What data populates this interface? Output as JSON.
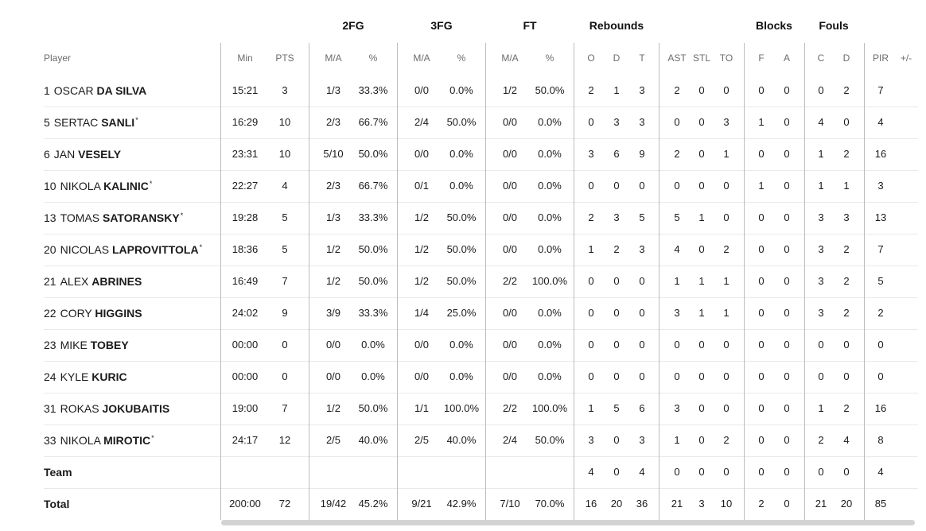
{
  "groups": [
    "2FG",
    "3FG",
    "FT",
    "Rebounds",
    "Blocks",
    "Fouls"
  ],
  "subheaders": {
    "player": "Player",
    "cols": [
      "Min",
      "PTS",
      "M/A",
      "%",
      "M/A",
      "%",
      "M/A",
      "%",
      "O",
      "D",
      "T",
      "AST",
      "STL",
      "TO",
      "F",
      "A",
      "C",
      "D",
      "PIR",
      "+/-"
    ]
  },
  "players": [
    {
      "num": "1",
      "first": "OSCAR",
      "last": "DA SILVA",
      "star": false,
      "stats": [
        "15:21",
        "3",
        "1/3",
        "33.3%",
        "0/0",
        "0.0%",
        "1/2",
        "50.0%",
        "2",
        "1",
        "3",
        "2",
        "0",
        "0",
        "0",
        "0",
        "0",
        "2",
        "7",
        ""
      ]
    },
    {
      "num": "5",
      "first": "SERTAC",
      "last": "SANLI",
      "star": true,
      "stats": [
        "16:29",
        "10",
        "2/3",
        "66.7%",
        "2/4",
        "50.0%",
        "0/0",
        "0.0%",
        "0",
        "3",
        "3",
        "0",
        "0",
        "3",
        "1",
        "0",
        "4",
        "0",
        "4",
        ""
      ]
    },
    {
      "num": "6",
      "first": "JAN",
      "last": "VESELY",
      "star": false,
      "stats": [
        "23:31",
        "10",
        "5/10",
        "50.0%",
        "0/0",
        "0.0%",
        "0/0",
        "0.0%",
        "3",
        "6",
        "9",
        "2",
        "0",
        "1",
        "0",
        "0",
        "1",
        "2",
        "16",
        ""
      ]
    },
    {
      "num": "10",
      "first": "NIKOLA",
      "last": "KALINIC",
      "star": true,
      "stats": [
        "22:27",
        "4",
        "2/3",
        "66.7%",
        "0/1",
        "0.0%",
        "0/0",
        "0.0%",
        "0",
        "0",
        "0",
        "0",
        "0",
        "0",
        "1",
        "0",
        "1",
        "1",
        "3",
        ""
      ]
    },
    {
      "num": "13",
      "first": "TOMAS",
      "last": "SATORANSKY",
      "star": true,
      "stats": [
        "19:28",
        "5",
        "1/3",
        "33.3%",
        "1/2",
        "50.0%",
        "0/0",
        "0.0%",
        "2",
        "3",
        "5",
        "5",
        "1",
        "0",
        "0",
        "0",
        "3",
        "3",
        "13",
        ""
      ]
    },
    {
      "num": "20",
      "first": "NICOLAS",
      "last": "LAPROVITTOLA",
      "star": true,
      "stats": [
        "18:36",
        "5",
        "1/2",
        "50.0%",
        "1/2",
        "50.0%",
        "0/0",
        "0.0%",
        "1",
        "2",
        "3",
        "4",
        "0",
        "2",
        "0",
        "0",
        "3",
        "2",
        "7",
        ""
      ]
    },
    {
      "num": "21",
      "first": "ALEX",
      "last": "ABRINES",
      "star": false,
      "stats": [
        "16:49",
        "7",
        "1/2",
        "50.0%",
        "1/2",
        "50.0%",
        "2/2",
        "100.0%",
        "0",
        "0",
        "0",
        "1",
        "1",
        "1",
        "0",
        "0",
        "3",
        "2",
        "5",
        ""
      ]
    },
    {
      "num": "22",
      "first": "CORY",
      "last": "HIGGINS",
      "star": false,
      "stats": [
        "24:02",
        "9",
        "3/9",
        "33.3%",
        "1/4",
        "25.0%",
        "0/0",
        "0.0%",
        "0",
        "0",
        "0",
        "3",
        "1",
        "1",
        "0",
        "0",
        "3",
        "2",
        "2",
        ""
      ]
    },
    {
      "num": "23",
      "first": "MIKE",
      "last": "TOBEY",
      "star": false,
      "stats": [
        "00:00",
        "0",
        "0/0",
        "0.0%",
        "0/0",
        "0.0%",
        "0/0",
        "0.0%",
        "0",
        "0",
        "0",
        "0",
        "0",
        "0",
        "0",
        "0",
        "0",
        "0",
        "0",
        ""
      ]
    },
    {
      "num": "24",
      "first": "KYLE",
      "last": "KURIC",
      "star": false,
      "stats": [
        "00:00",
        "0",
        "0/0",
        "0.0%",
        "0/0",
        "0.0%",
        "0/0",
        "0.0%",
        "0",
        "0",
        "0",
        "0",
        "0",
        "0",
        "0",
        "0",
        "0",
        "0",
        "0",
        ""
      ]
    },
    {
      "num": "31",
      "first": "ROKAS",
      "last": "JOKUBAITIS",
      "star": false,
      "stats": [
        "19:00",
        "7",
        "1/2",
        "50.0%",
        "1/1",
        "100.0%",
        "2/2",
        "100.0%",
        "1",
        "5",
        "6",
        "3",
        "0",
        "0",
        "0",
        "0",
        "1",
        "2",
        "16",
        ""
      ]
    },
    {
      "num": "33",
      "first": "NIKOLA",
      "last": "MIROTIC",
      "star": true,
      "stats": [
        "24:17",
        "12",
        "2/5",
        "40.0%",
        "2/5",
        "40.0%",
        "2/4",
        "50.0%",
        "3",
        "0",
        "3",
        "1",
        "0",
        "2",
        "0",
        "0",
        "2",
        "4",
        "8",
        ""
      ]
    }
  ],
  "team": {
    "label": "Team",
    "stats": [
      "",
      "",
      "",
      "",
      "",
      "",
      "",
      "",
      "4",
      "0",
      "4",
      "0",
      "0",
      "0",
      "0",
      "0",
      "0",
      "0",
      "4",
      ""
    ]
  },
  "total": {
    "label": "Total",
    "stats": [
      "200:00",
      "72",
      "19/42",
      "45.2%",
      "9/21",
      "42.9%",
      "7/10",
      "70.0%",
      "16",
      "20",
      "36",
      "21",
      "3",
      "10",
      "2",
      "0",
      "21",
      "20",
      "85",
      ""
    ]
  }
}
